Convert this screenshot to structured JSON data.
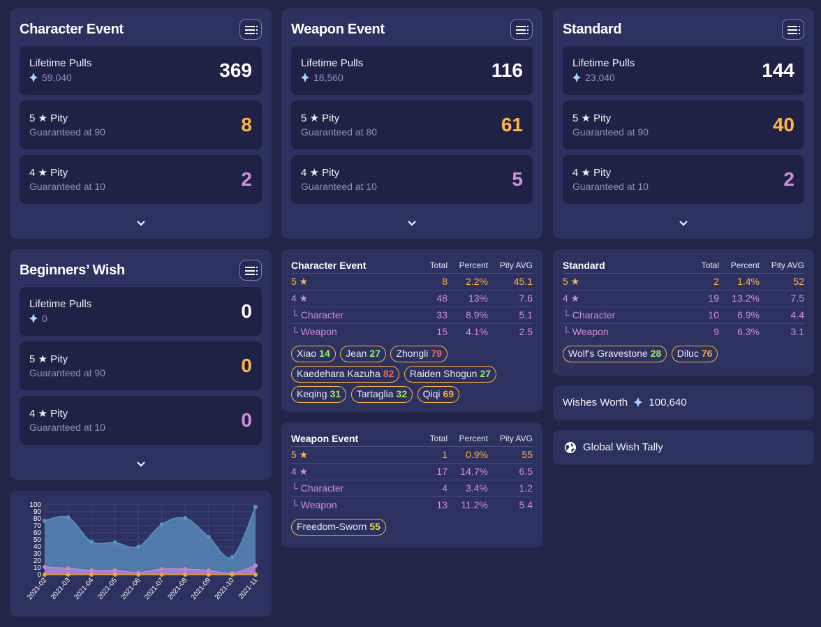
{
  "colors": {
    "bg": "#222547",
    "card": "#2d3160",
    "stat": "#1f2245",
    "orange": "#ffb547",
    "purple": "#d38ee0"
  },
  "banners": {
    "character": {
      "title": "Character Event",
      "lifetime_label": "Lifetime Pulls",
      "lifetime_gems": "59,040",
      "lifetime_value": "369",
      "p5_label": "5 ★ Pity",
      "p5_sub": "Guaranteed at 90",
      "p5_value": "8",
      "p4_label": "4 ★ Pity",
      "p4_sub": "Guaranteed at 10",
      "p4_value": "2"
    },
    "weapon": {
      "title": "Weapon Event",
      "lifetime_label": "Lifetime Pulls",
      "lifetime_gems": "18,560",
      "lifetime_value": "116",
      "p5_label": "5 ★ Pity",
      "p5_sub": "Guaranteed at 80",
      "p5_value": "61",
      "p4_label": "4 ★ Pity",
      "p4_sub": "Guaranteed at 10",
      "p4_value": "5"
    },
    "standard": {
      "title": "Standard",
      "lifetime_label": "Lifetime Pulls",
      "lifetime_gems": "23,040",
      "lifetime_value": "144",
      "p5_label": "5 ★ Pity",
      "p5_sub": "Guaranteed at 90",
      "p5_value": "40",
      "p4_label": "4 ★ Pity",
      "p4_sub": "Guaranteed at 10",
      "p4_value": "2"
    },
    "beginners": {
      "title": "Beginners’ Wish",
      "lifetime_label": "Lifetime Pulls",
      "lifetime_gems": "0",
      "lifetime_value": "0",
      "p5_label": "5 ★ Pity",
      "p5_sub": "Guaranteed at 90",
      "p5_value": "0",
      "p4_label": "4 ★ Pity",
      "p4_sub": "Guaranteed at 10",
      "p4_value": "0"
    }
  },
  "tables": {
    "character": {
      "name": "Character Event",
      "headers": [
        "Total",
        "Percent",
        "Pity AVG"
      ],
      "rows": [
        {
          "label": "5 ★",
          "total": "8",
          "percent": "2.2%",
          "pity": "45.1"
        },
        {
          "label": "4 ★",
          "total": "48",
          "percent": "13%",
          "pity": "7.6"
        },
        {
          "label": "└ Character",
          "total": "33",
          "percent": "8.9%",
          "pity": "5.1"
        },
        {
          "label": "└ Weapon",
          "total": "15",
          "percent": "4.1%",
          "pity": "2.5"
        }
      ],
      "tags": [
        {
          "name": "Xiao",
          "pity": "14",
          "color": "#a4e86b"
        },
        {
          "name": "Jean",
          "pity": "27",
          "color": "#a4e86b"
        },
        {
          "name": "Zhongli",
          "pity": "79",
          "color": "#f06b4b"
        },
        {
          "name": "Kaedehara Kazuha",
          "pity": "82",
          "color": "#f06b4b"
        },
        {
          "name": "Raiden Shogun",
          "pity": "27",
          "color": "#a4e86b"
        },
        {
          "name": "Keqing",
          "pity": "31",
          "color": "#a4e86b"
        },
        {
          "name": "Tartaglia",
          "pity": "32",
          "color": "#a4e86b"
        },
        {
          "name": "Qiqi",
          "pity": "69",
          "color": "#ffa53a"
        }
      ]
    },
    "weapon": {
      "name": "Weapon Event",
      "headers": [
        "Total",
        "Percent",
        "Pity AVG"
      ],
      "rows": [
        {
          "label": "5 ★",
          "total": "1",
          "percent": "0.9%",
          "pity": "55"
        },
        {
          "label": "4 ★",
          "total": "17",
          "percent": "14.7%",
          "pity": "6.5"
        },
        {
          "label": "└ Character",
          "total": "4",
          "percent": "3.4%",
          "pity": "1.2"
        },
        {
          "label": "└ Weapon",
          "total": "13",
          "percent": "11.2%",
          "pity": "5.4"
        }
      ],
      "tags": [
        {
          "name": "Freedom-Sworn",
          "pity": "55",
          "color": "#f6dd4a"
        }
      ]
    },
    "standard": {
      "name": "Standard",
      "headers": [
        "Total",
        "Percent",
        "Pity AVG"
      ],
      "rows": [
        {
          "label": "5 ★",
          "total": "2",
          "percent": "1.4%",
          "pity": "52"
        },
        {
          "label": "4 ★",
          "total": "19",
          "percent": "13.2%",
          "pity": "7.5"
        },
        {
          "label": "└ Character",
          "total": "10",
          "percent": "6.9%",
          "pity": "4.4"
        },
        {
          "label": "└ Weapon",
          "total": "9",
          "percent": "6.3%",
          "pity": "3.1"
        }
      ],
      "tags": [
        {
          "name": "Wolf's Gravestone",
          "pity": "28",
          "color": "#a4e86b"
        },
        {
          "name": "Diluc",
          "pity": "76",
          "color": "#ffa53a"
        }
      ]
    }
  },
  "wishes_worth": {
    "label": "Wishes Worth",
    "value": "100,640"
  },
  "global_tally": {
    "label": "Global Wish Tally"
  },
  "chart_data": {
    "type": "area",
    "x": [
      "2021-02",
      "2021-03",
      "2021-04",
      "2021-05",
      "2021-06",
      "2021-07",
      "2021-08",
      "2021-09",
      "2021-10",
      "2021-11"
    ],
    "ylim": [
      0,
      100
    ],
    "yticks": [
      "0",
      "10",
      "20",
      "30",
      "40",
      "50",
      "60",
      "70",
      "80",
      "90",
      "100"
    ],
    "grid": true,
    "series": [
      {
        "values": [
          77,
          82,
          47,
          46,
          40,
          72,
          81,
          54,
          25,
          97
        ],
        "color": "#5b93c4"
      },
      {
        "values": [
          11,
          9,
          6,
          6,
          3,
          8,
          8,
          6,
          2,
          13
        ],
        "color": "#c783d6"
      },
      {
        "values": [
          0,
          0,
          0,
          0,
          0,
          0,
          0,
          0,
          0,
          0
        ],
        "color": "#f0a43a"
      }
    ]
  }
}
